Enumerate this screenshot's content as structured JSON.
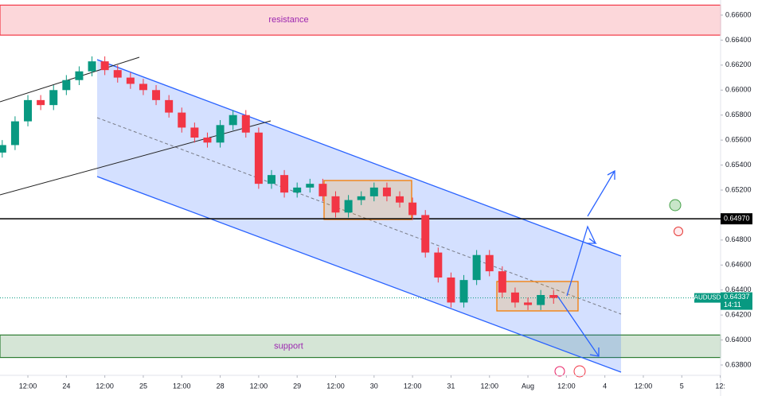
{
  "chart_data": {
    "type": "candlestick",
    "symbol": "AUDUSD",
    "countdown": "14:11",
    "last_price": 0.64337,
    "up_color": "#089981",
    "down_color": "#f23645",
    "x": [
      4,
      8,
      12,
      16,
      20,
      24,
      28,
      32,
      36,
      40,
      44,
      48,
      52,
      56,
      60,
      64,
      68,
      72,
      76,
      80,
      84,
      88,
      92,
      96,
      100,
      104,
      108,
      112,
      116,
      120,
      124,
      128,
      132,
      136,
      140,
      144,
      148,
      152,
      156,
      160,
      164,
      168,
      172,
      176
    ],
    "open": [
      0.655,
      0.6556,
      0.6575,
      0.6592,
      0.6588,
      0.66,
      0.6608,
      0.6615,
      0.6623,
      0.6616,
      0.661,
      0.6605,
      0.66,
      0.6592,
      0.6582,
      0.657,
      0.6562,
      0.6558,
      0.6572,
      0.658,
      0.6566,
      0.6525,
      0.6532,
      0.6518,
      0.6522,
      0.6525,
      0.6515,
      0.6502,
      0.6512,
      0.6515,
      0.6522,
      0.6515,
      0.651,
      0.65,
      0.647,
      0.645,
      0.643,
      0.6448,
      0.6468,
      0.6455,
      0.6438,
      0.643,
      0.6428,
      0.6436
    ],
    "high": [
      0.656,
      0.6579,
      0.6596,
      0.6596,
      0.6604,
      0.6612,
      0.6619,
      0.6627,
      0.6627,
      0.662,
      0.6614,
      0.6609,
      0.6604,
      0.6596,
      0.6586,
      0.6574,
      0.6566,
      0.6576,
      0.6584,
      0.6584,
      0.657,
      0.6536,
      0.6536,
      0.6526,
      0.6529,
      0.6529,
      0.6519,
      0.6516,
      0.6519,
      0.6526,
      0.6526,
      0.6519,
      0.6514,
      0.6504,
      0.6474,
      0.6454,
      0.6452,
      0.6472,
      0.6472,
      0.6459,
      0.6442,
      0.6434,
      0.644,
      0.644
    ],
    "low": [
      0.6546,
      0.6552,
      0.6571,
      0.6584,
      0.6584,
      0.6596,
      0.6604,
      0.6611,
      0.6612,
      0.6606,
      0.6601,
      0.6596,
      0.6588,
      0.6578,
      0.6566,
      0.6558,
      0.6554,
      0.6554,
      0.6568,
      0.6562,
      0.6521,
      0.6521,
      0.6514,
      0.6514,
      0.6518,
      0.6511,
      0.6498,
      0.6498,
      0.6508,
      0.6511,
      0.6511,
      0.6506,
      0.6496,
      0.6466,
      0.6446,
      0.6426,
      0.6426,
      0.6444,
      0.6451,
      0.6434,
      0.6426,
      0.6424,
      0.6424,
      0.6429
    ],
    "close": [
      0.6556,
      0.6575,
      0.6592,
      0.6588,
      0.66,
      0.6608,
      0.6615,
      0.6623,
      0.6616,
      0.661,
      0.6605,
      0.66,
      0.6592,
      0.6582,
      0.657,
      0.6562,
      0.6558,
      0.6572,
      0.658,
      0.6566,
      0.6525,
      0.6532,
      0.6518,
      0.6522,
      0.6525,
      0.6515,
      0.6502,
      0.6512,
      0.6515,
      0.6522,
      0.6515,
      0.651,
      0.65,
      0.647,
      0.645,
      0.643,
      0.6448,
      0.6468,
      0.6455,
      0.6438,
      0.643,
      0.6428,
      0.6436,
      0.64337
    ],
    "xlim": [
      3.3,
      228.1
    ],
    "xticks": [
      {
        "value": 12,
        "label": "12:00"
      },
      24,
      {
        "value": 36,
        "label": "12:00"
      },
      {
        "value": 48,
        "label": "25"
      },
      {
        "value": 60,
        "label": "12:00"
      },
      {
        "value": 72,
        "label": "28"
      },
      {
        "value": 84,
        "label": "12:00"
      },
      {
        "value": 96,
        "label": "29"
      },
      {
        "value": 108,
        "label": "12:00"
      },
      {
        "value": 120,
        "label": "30"
      },
      {
        "value": 132,
        "label": "12:00"
      },
      {
        "value": 144,
        "label": "31"
      },
      {
        "value": 156,
        "label": "12:00"
      },
      {
        "value": 168,
        "label": "Aug"
      },
      {
        "value": 180,
        "label": "12:00"
      },
      {
        "value": 192,
        "label": "4"
      },
      {
        "value": 204,
        "label": "12:00"
      },
      {
        "value": 216,
        "label": "5"
      },
      {
        "value": 228,
        "label": "12:"
      }
    ],
    "ylim": [
      0.6373,
      0.66721
    ],
    "yticks": [
      {
        "value": 0.666,
        "label": "0.66600"
      },
      {
        "value": 0.664,
        "label": "0.66400"
      },
      {
        "value": 0.662,
        "label": "0.66200"
      },
      {
        "value": 0.66,
        "label": "0.66000"
      },
      {
        "value": 0.658,
        "label": "0.65800"
      },
      {
        "value": 0.656,
        "label": "0.65600"
      },
      {
        "value": 0.654,
        "label": "0.65400"
      },
      {
        "value": 0.652,
        "label": "0.65200"
      },
      {
        "value": 0.648,
        "label": "0.64800"
      },
      {
        "value": 0.646,
        "label": "0.64600"
      },
      {
        "value": 0.644,
        "label": "0.64400"
      },
      {
        "value": 0.642,
        "label": "0.64200"
      },
      {
        "value": 0.64,
        "label": "0.64000"
      },
      {
        "value": 0.638,
        "label": "0.63800"
      }
    ],
    "level": {
      "value": 0.6497,
      "label": "0.64970"
    },
    "zones": [
      {
        "label": "resistance",
        "low": 0.6644,
        "high": 0.6668,
        "color": "#f23645"
      },
      {
        "label": "support",
        "low": 0.6386,
        "high": 0.6404,
        "color": "#2e7d32"
      }
    ],
    "grid": false
  }
}
